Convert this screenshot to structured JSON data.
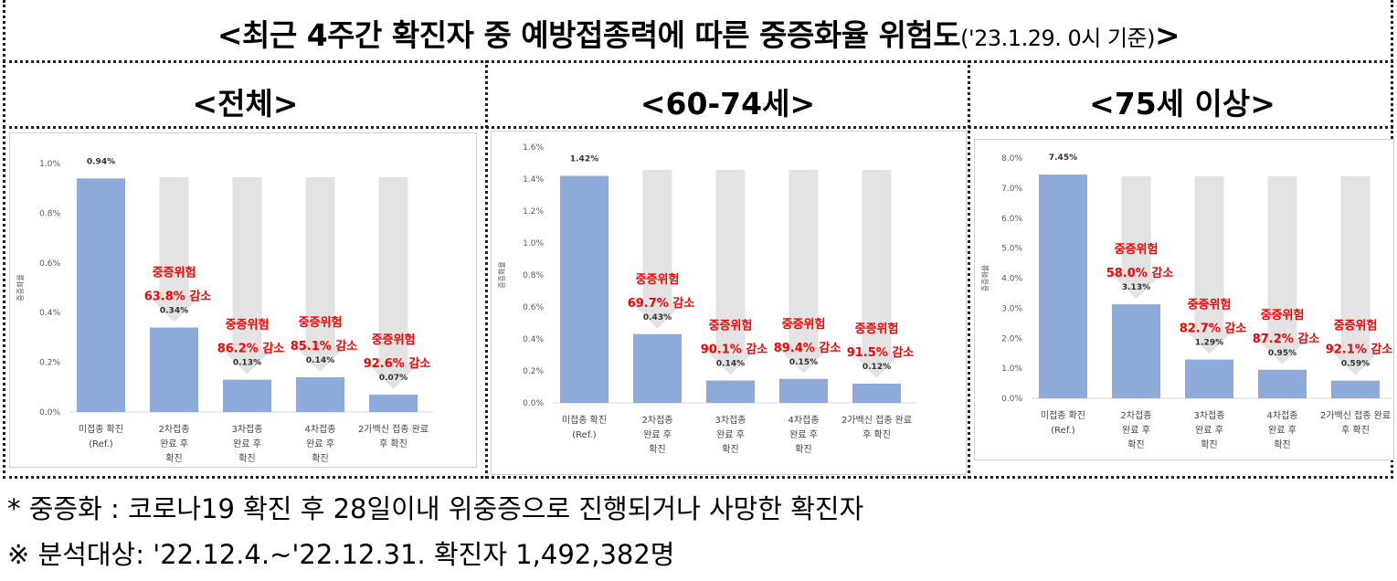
{
  "title": {
    "main": "<최근 4주간 확진자 중 예방접종력에 따른 중증화율 위험도",
    "paren": "('23.1.29. 0시 기준)",
    "close": ">"
  },
  "panels": [
    {
      "title": "<전체>"
    },
    {
      "title": "<60-74세>"
    },
    {
      "title": "<75세 이상>"
    }
  ],
  "chart_data": [
    {
      "type": "bar",
      "panel": "전체",
      "ylabel": "중증화율",
      "ylim": [
        0,
        1.0
      ],
      "yticks": [
        0,
        0.2,
        0.4,
        0.6,
        0.8,
        1.0
      ],
      "ytick_labels": [
        "0.0%",
        "0.2%",
        "0.4%",
        "0.6%",
        "0.8%",
        "1.0%"
      ],
      "categories": [
        [
          "미접종 확진",
          "(Ref.)"
        ],
        [
          "2차접종",
          "완료 후",
          "확진"
        ],
        [
          "3차접종",
          "완료 후",
          "확진"
        ],
        [
          "4차접종",
          "완료 후",
          "확진"
        ],
        [
          "2가백신 접종 완료",
          "후 확진"
        ]
      ],
      "values": [
        0.94,
        0.34,
        0.13,
        0.14,
        0.07
      ],
      "value_labels": [
        "0.94%",
        "0.34%",
        "0.13%",
        "0.14%",
        "0.07%"
      ],
      "annotations": [
        null,
        [
          "중증위험",
          "63.8% 감소"
        ],
        [
          "중증위험",
          "86.2% 감소"
        ],
        [
          "중증위험",
          "85.1% 감소"
        ],
        [
          "중증위험",
          "92.6% 감소"
        ]
      ]
    },
    {
      "type": "bar",
      "panel": "60-74세",
      "ylabel": "중증화율",
      "ylim": [
        0,
        1.6
      ],
      "yticks": [
        0,
        0.2,
        0.4,
        0.6,
        0.8,
        1.0,
        1.2,
        1.4,
        1.6
      ],
      "ytick_labels": [
        "0.0%",
        "0.2%",
        "0.4%",
        "0.6%",
        "0.8%",
        "1.0%",
        "1.2%",
        "1.4%",
        "1.6%"
      ],
      "categories": [
        [
          "미접종 확진",
          "(Ref.)"
        ],
        [
          "2차접종",
          "완료 후",
          "확진"
        ],
        [
          "3차접종",
          "완료 후",
          "확진"
        ],
        [
          "4차접종",
          "완료 후",
          "확진"
        ],
        [
          "2가백신 접종 완료",
          "후 확진"
        ]
      ],
      "values": [
        1.42,
        0.43,
        0.14,
        0.15,
        0.12
      ],
      "value_labels": [
        "1.42%",
        "0.43%",
        "0.14%",
        "0.15%",
        "0.12%"
      ],
      "annotations": [
        null,
        [
          "중증위험",
          "69.7% 감소"
        ],
        [
          "중증위험",
          "90.1% 감소"
        ],
        [
          "중증위험",
          "89.4% 감소"
        ],
        [
          "중증위험",
          "91.5% 감소"
        ]
      ]
    },
    {
      "type": "bar",
      "panel": "75세 이상",
      "ylabel": "중증화율",
      "ylim": [
        0,
        8.0
      ],
      "yticks": [
        0,
        1,
        2,
        3,
        4,
        5,
        6,
        7,
        8
      ],
      "ytick_labels": [
        "0.0%",
        "1.0%",
        "2.0%",
        "3.0%",
        "4.0%",
        "5.0%",
        "6.0%",
        "7.0%",
        "8.0%"
      ],
      "categories": [
        [
          "미접종 확진",
          "(Ref.)"
        ],
        [
          "2차접종",
          "완료 후",
          "확진"
        ],
        [
          "3차접종",
          "완료 후",
          "확진"
        ],
        [
          "4차접종",
          "완료 후",
          "확진"
        ],
        [
          "2가백신 접종 완료",
          "후 확진"
        ]
      ],
      "values": [
        7.45,
        3.13,
        1.29,
        0.95,
        0.59
      ],
      "value_labels": [
        "7.45%",
        "3.13%",
        "1.29%",
        "0.95%",
        "0.59%"
      ],
      "annotations": [
        null,
        [
          "중증위험",
          "58.0% 감소"
        ],
        [
          "중증위험",
          "82.7% 감소"
        ],
        [
          "중증위험",
          "87.2% 감소"
        ],
        [
          "중증위험",
          "92.1% 감소"
        ]
      ]
    }
  ],
  "colors": {
    "bar": "#8eaadb",
    "arrow": "#e3e3e3",
    "annotation": "#ff0000",
    "axis_text": "#595959"
  },
  "footnotes": {
    "line1": "* 중증화 : 코로나19 확진 후 28일이내 위중증으로 진행되거나 사망한 확진자",
    "line2": "※ 분석대상: '22.12.4.~'22.12.31. 확진자 1,492,382명"
  }
}
